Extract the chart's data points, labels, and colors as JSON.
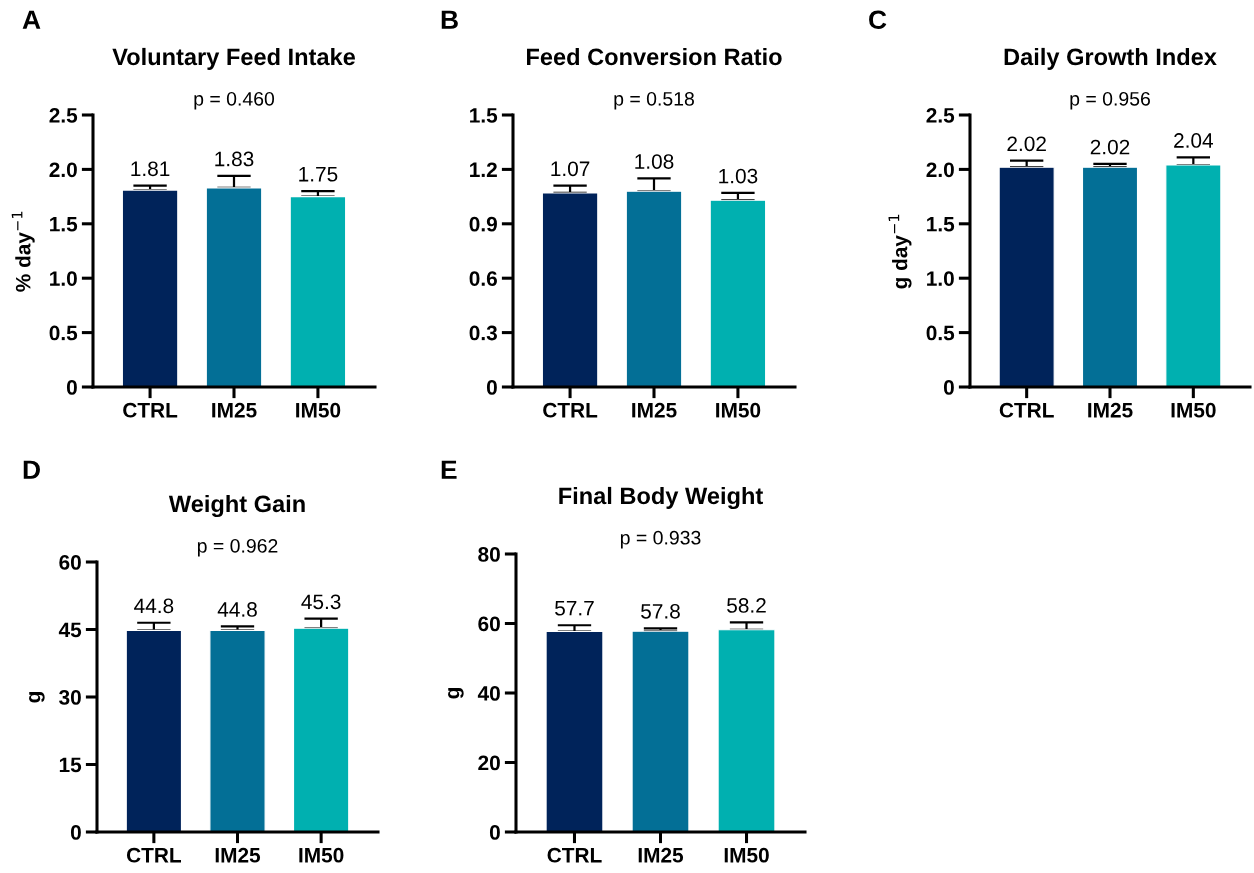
{
  "chart_data": [
    {
      "type": "bar",
      "title": "Voluntary Feed Intake",
      "ylabel": "% day$^{−1}$",
      "annotations": [
        "A",
        "p = 0.460"
      ],
      "categories": [
        "CTRL",
        "IM25",
        "IM50"
      ],
      "values": [
        1.81,
        1.83,
        1.75
      ],
      "colors": [
        "#00235a",
        "#036f96",
        "#00b0b0"
      ],
      "errors": [
        [
          1.81,
          1.85
        ],
        [
          1.83,
          1.94
        ],
        [
          1.75,
          1.8
        ]
      ],
      "data_labels": true,
      "ylim": [
        0,
        2.5
      ],
      "yticks": [
        {
          "value": 0,
          "label": "0"
        },
        {
          "value": 0.5,
          "label": "0.5"
        },
        {
          "value": 1.0,
          "label": "1.0"
        },
        {
          "value": 1.5,
          "label": "1.5"
        },
        {
          "value": 2.0,
          "label": "2.0"
        },
        {
          "value": 2.5,
          "label": "2.5"
        }
      ],
      "grid": false,
      "legend": false
    },
    {
      "type": "bar",
      "title": "Feed Conversion Ratio",
      "annotations": [
        "B",
        "p = 0.518"
      ],
      "categories": [
        "CTRL",
        "IM25",
        "IM50"
      ],
      "values": [
        1.07,
        1.08,
        1.03
      ],
      "colors": [
        "#00235a",
        "#036f96",
        "#00b0b0"
      ],
      "errors": [
        [
          1.07,
          1.11
        ],
        [
          1.08,
          1.15
        ],
        [
          1.03,
          1.07
        ]
      ],
      "data_labels": true,
      "ylim": [
        0,
        1.5
      ],
      "yticks": [
        {
          "value": 0,
          "label": "0"
        },
        {
          "value": 0.3,
          "label": "0.3"
        },
        {
          "value": 0.6,
          "label": "0.6"
        },
        {
          "value": 0.9,
          "label": "0.9"
        },
        {
          "value": 1.2,
          "label": "1.2"
        },
        {
          "value": 1.5,
          "label": "1.5"
        }
      ],
      "grid": false,
      "legend": false
    },
    {
      "type": "bar",
      "title": "Daily Growth Index",
      "ylabel": "g day$^{−1}$",
      "annotations": [
        "C",
        "p = 0.956"
      ],
      "categories": [
        "CTRL",
        "IM25",
        "IM50"
      ],
      "values": [
        2.02,
        2.02,
        2.04
      ],
      "colors": [
        "#00235a",
        "#036f96",
        "#00b0b0"
      ],
      "errors": [
        [
          2.02,
          2.08
        ],
        [
          2.02,
          2.05
        ],
        [
          2.04,
          2.11
        ]
      ],
      "data_labels": true,
      "ylim": [
        0,
        2.5
      ],
      "yticks": [
        {
          "value": 0,
          "label": "0"
        },
        {
          "value": 0.5,
          "label": "0.5"
        },
        {
          "value": 1.0,
          "label": "1.0"
        },
        {
          "value": 1.5,
          "label": "1.5"
        },
        {
          "value": 2.0,
          "label": "2.0"
        },
        {
          "value": 2.5,
          "label": "2.5"
        }
      ],
      "grid": false,
      "legend": false
    },
    {
      "type": "bar",
      "title": "Weight Gain",
      "ylabel": "g",
      "annotations": [
        "D",
        "p = 0.962"
      ],
      "categories": [
        "CTRL",
        "IM25",
        "IM50"
      ],
      "values": [
        44.8,
        44.8,
        45.3
      ],
      "colors": [
        "#00235a",
        "#036f96",
        "#00b0b0"
      ],
      "errors": [
        [
          44.8,
          46.5
        ],
        [
          44.8,
          45.7
        ],
        [
          45.3,
          47.4
        ]
      ],
      "data_labels": true,
      "ylim": [
        0,
        60
      ],
      "yticks": [
        0,
        15,
        30,
        45,
        60
      ],
      "grid": false,
      "legend": false
    },
    {
      "type": "bar",
      "title": "Final Body Weight",
      "ylabel": "g",
      "annotations": [
        "E",
        "p = 0.933"
      ],
      "categories": [
        "CTRL",
        "IM25",
        "IM50"
      ],
      "values": [
        57.7,
        57.8,
        58.2
      ],
      "colors": [
        "#00235a",
        "#036f96",
        "#00b0b0"
      ],
      "errors": [
        [
          57.7,
          59.5
        ],
        [
          57.8,
          58.6
        ],
        [
          58.2,
          60.3
        ]
      ],
      "data_labels": true,
      "ylim": [
        0,
        80
      ],
      "yticks": [
        0,
        20,
        40,
        60,
        80
      ],
      "grid": false,
      "legend": false
    }
  ]
}
